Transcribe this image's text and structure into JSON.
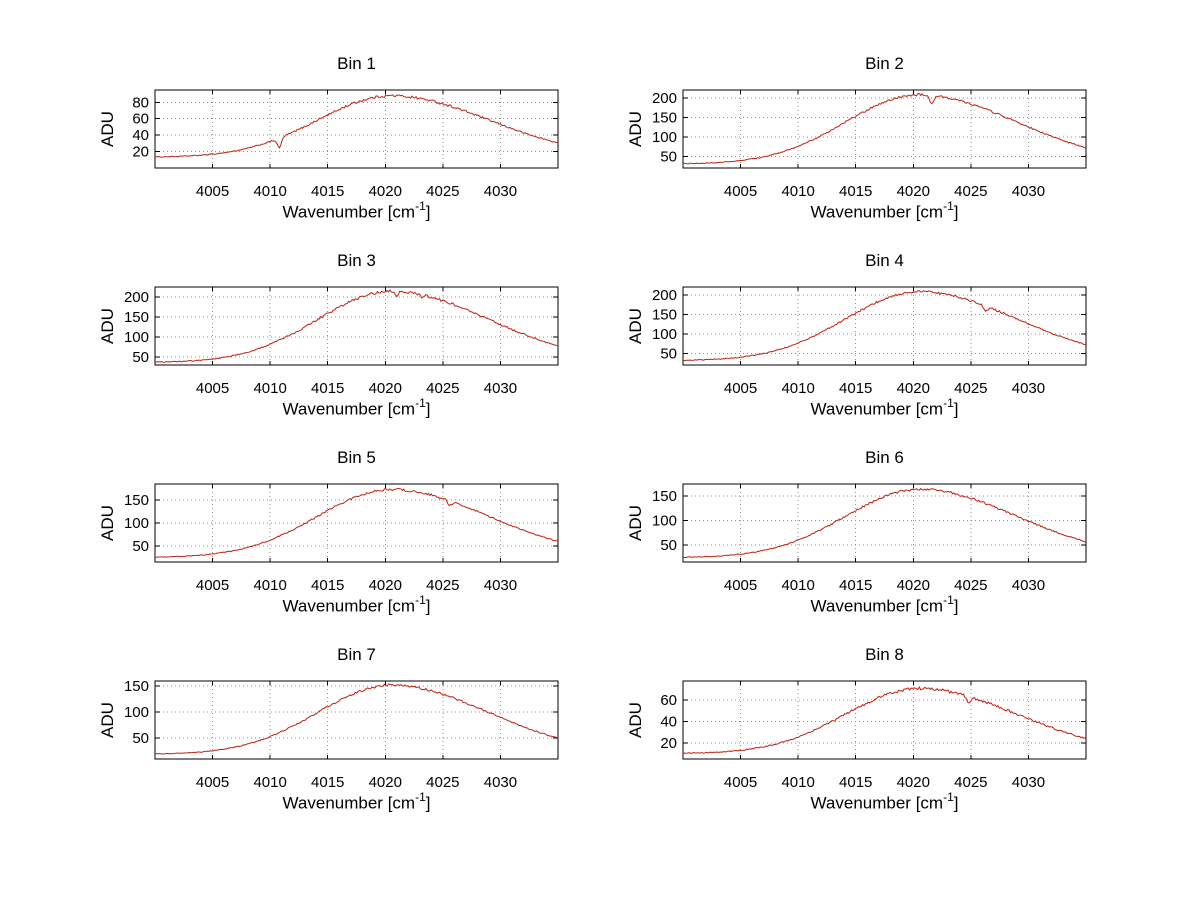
{
  "style": {
    "background": "#ffffff",
    "line_color": "#bb2211",
    "grid_color": "#909090",
    "axis_color": "#000000"
  },
  "axes": {
    "ylabel": "ADU",
    "xlabel_prefix": "Wavenumber [cm",
    "xlabel_sup": "-1",
    "xlabel_suffix": "]",
    "xlim": [
      4000,
      4035
    ],
    "xticks": [
      4005,
      4010,
      4015,
      4020,
      4025,
      4030
    ],
    "x_samples": [
      4000,
      4002.5,
      4005,
      4007.5,
      4010,
      4012.5,
      4015,
      4017.5,
      4020,
      4022.5,
      4025,
      4027.5,
      4030,
      4032.5,
      4035
    ]
  },
  "chart_data": [
    {
      "type": "line",
      "title": "Bin 1",
      "ylabel": "ADU",
      "xlabel": "Wavenumber [cm^-1]",
      "xlim": [
        4000,
        4035
      ],
      "xticks": [
        4005,
        4010,
        4015,
        4020,
        4025,
        4030
      ],
      "ylim": [
        0,
        95
      ],
      "yticks": [
        20,
        40,
        60,
        80
      ],
      "y": [
        13.4,
        14.4,
        16.9,
        22.3,
        32.2,
        47.0,
        64.6,
        80.1,
        87.8,
        85.9,
        78.2,
        66.4,
        53.1,
        40.6,
        30.4
      ],
      "noise_amp": 1.6,
      "dips": [
        {
          "x": 4010.8,
          "depth": 12,
          "width": 0.25
        }
      ]
    },
    {
      "type": "line",
      "title": "Bin 2",
      "ylabel": "ADU",
      "xlabel": "Wavenumber [cm^-1]",
      "xlim": [
        4000,
        4035
      ],
      "xticks": [
        4005,
        4010,
        4015,
        4020,
        4025,
        4030
      ],
      "ylim": [
        20,
        220
      ],
      "yticks": [
        50,
        100,
        150,
        200
      ],
      "y": [
        31.0,
        33.2,
        39.2,
        52.1,
        75.6,
        110.8,
        152.6,
        189.3,
        207.5,
        203.1,
        184.6,
        156.6,
        125.1,
        95.5,
        71.3
      ],
      "noise_amp": 3.0,
      "dips": [
        {
          "x": 4021.6,
          "depth": 22,
          "width": 0.3
        }
      ]
    },
    {
      "type": "line",
      "title": "Bin 3",
      "ylabel": "ADU",
      "xlabel": "Wavenumber [cm^-1]",
      "xlim": [
        4000,
        4035
      ],
      "xticks": [
        4005,
        4010,
        4015,
        4020,
        4025,
        4030
      ],
      "ylim": [
        30,
        225
      ],
      "yticks": [
        50,
        100,
        150,
        200
      ],
      "y": [
        37.0,
        39.2,
        45.2,
        58.1,
        81.6,
        116.8,
        158.6,
        195.3,
        213.5,
        209.1,
        190.6,
        162.6,
        131.1,
        101.5,
        77.3
      ],
      "noise_amp": 3.5,
      "dips": [
        {
          "x": 4021.0,
          "depth": 10,
          "width": 0.2
        },
        {
          "x": 4023.2,
          "depth": 8,
          "width": 0.15
        }
      ]
    },
    {
      "type": "line",
      "title": "Bin 4",
      "ylabel": "ADU",
      "xlabel": "Wavenumber [cm^-1]",
      "xlim": [
        4000,
        4035
      ],
      "xticks": [
        4005,
        4010,
        4015,
        4020,
        4025,
        4030
      ],
      "ylim": [
        20,
        220
      ],
      "yticks": [
        50,
        100,
        150,
        200
      ],
      "y": [
        32.0,
        34.2,
        40.1,
        52.9,
        76.4,
        111.4,
        152.9,
        189.4,
        207.5,
        203.1,
        184.8,
        156.9,
        125.6,
        96.1,
        72.1
      ],
      "noise_amp": 3.0,
      "dips": [
        {
          "x": 4026.3,
          "depth": 12,
          "width": 0.25
        }
      ]
    },
    {
      "type": "line",
      "title": "Bin 5",
      "ylabel": "ADU",
      "xlabel": "Wavenumber [cm^-1]",
      "xlim": [
        4000,
        4035
      ],
      "xticks": [
        4005,
        4010,
        4015,
        4020,
        4025,
        4030
      ],
      "ylim": [
        15,
        185
      ],
      "yticks": [
        50,
        100,
        150
      ],
      "y": [
        25.8,
        27.7,
        32.6,
        43.4,
        62.9,
        92.2,
        126.9,
        157.4,
        172.6,
        168.9,
        153.6,
        130.3,
        104.1,
        79.5,
        59.4
      ],
      "noise_amp": 2.5,
      "dips": [
        {
          "x": 4025.6,
          "depth": 10,
          "width": 0.25
        }
      ]
    },
    {
      "type": "line",
      "title": "Bin 6",
      "ylabel": "ADU",
      "xlabel": "Wavenumber [cm^-1]",
      "xlim": [
        4000,
        4035
      ],
      "xticks": [
        4005,
        4010,
        4015,
        4020,
        4025,
        4030
      ],
      "ylim": [
        15,
        175
      ],
      "yticks": [
        50,
        100,
        150
      ],
      "y": [
        24.8,
        26.5,
        31.2,
        41.4,
        59.9,
        87.6,
        120.4,
        149.3,
        163.6,
        160.2,
        145.6,
        123.6,
        98.8,
        75.5,
        56.5
      ],
      "noise_amp": 2.5,
      "dips": []
    },
    {
      "type": "line",
      "title": "Bin 7",
      "ylabel": "ADU",
      "xlabel": "Wavenumber [cm^-1]",
      "xlim": [
        4000,
        4035
      ],
      "xticks": [
        4005,
        4010,
        4015,
        4020,
        4025,
        4030
      ],
      "ylim": [
        10,
        160
      ],
      "yticks": [
        50,
        100,
        150
      ],
      "y": [
        19.7,
        21.4,
        25.9,
        35.5,
        53.1,
        79.4,
        110.6,
        138.0,
        151.6,
        148.4,
        134.6,
        113.6,
        90.1,
        67.9,
        49.9
      ],
      "noise_amp": 2.2,
      "dips": []
    },
    {
      "type": "line",
      "title": "Bin 8",
      "ylabel": "ADU",
      "xlabel": "Wavenumber [cm^-1]",
      "xlim": [
        4000,
        4035
      ],
      "xticks": [
        4005,
        4010,
        4015,
        4020,
        4025,
        4030
      ],
      "ylim": [
        5,
        78
      ],
      "yticks": [
        20,
        40,
        60
      ],
      "y": [
        10.3,
        11.1,
        13.1,
        17.6,
        25.6,
        37.7,
        52.0,
        64.6,
        70.8,
        69.3,
        63.0,
        53.4,
        42.6,
        32.4,
        24.2
      ],
      "noise_amp": 1.4,
      "dips": [
        {
          "x": 4024.8,
          "depth": 5,
          "width": 0.25
        }
      ]
    }
  ]
}
